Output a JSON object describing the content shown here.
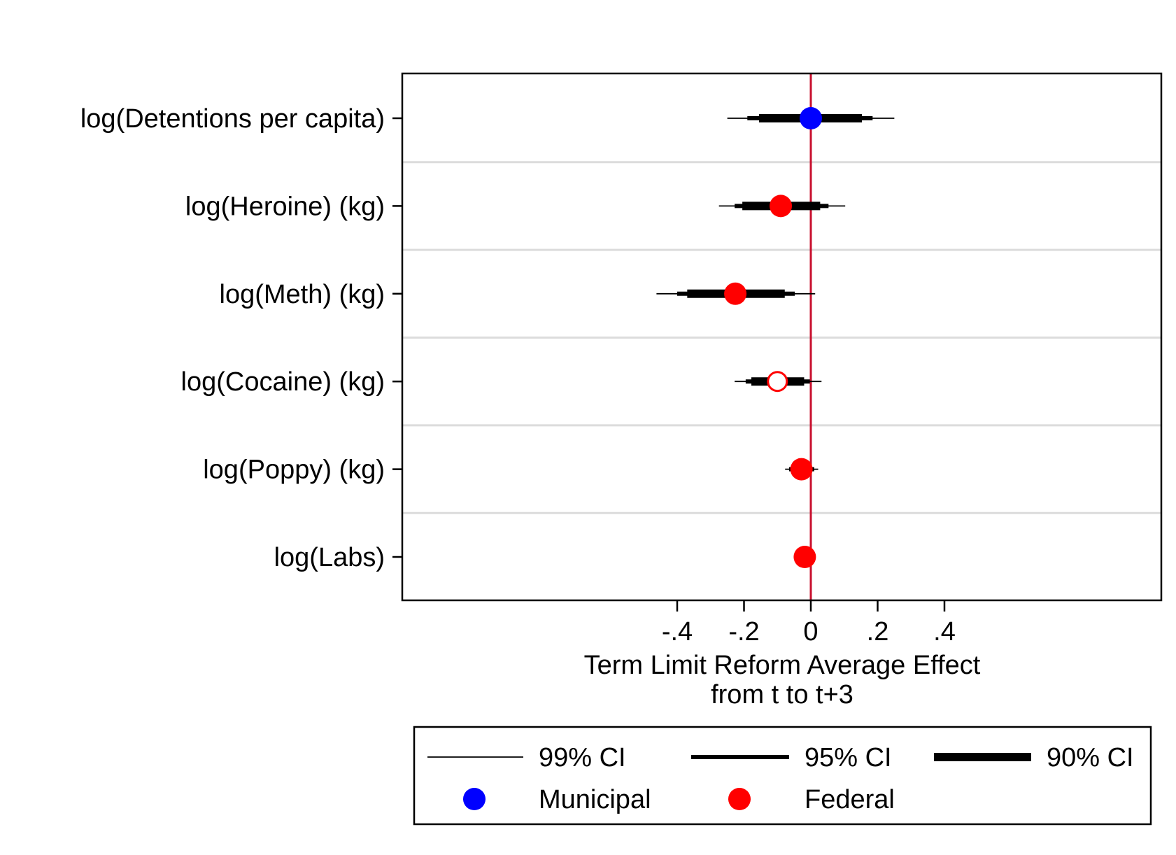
{
  "chart_data": {
    "type": "coefficient-plot",
    "title": "",
    "xlabel": [
      "Term Limit Reform Average Effect",
      "from t to t+3"
    ],
    "ylabel": "",
    "xlim": [
      -0.485,
      0.425
    ],
    "xticks": [
      -0.4,
      -0.2,
      0,
      0.2,
      0.4
    ],
    "xtick_labels": [
      "-.4",
      "-.2",
      "0",
      ".2",
      ".4"
    ],
    "reference_line": {
      "x": 0,
      "color": "#c8102e"
    },
    "grid": "horizontal separators between rows",
    "rows": [
      {
        "label": "log(Detentions per capita)",
        "estimate": 0.0,
        "ci99": [
          -0.25,
          0.25
        ],
        "ci95": [
          -0.19,
          0.185
        ],
        "ci90": [
          -0.155,
          0.153
        ],
        "group": "Municipal",
        "filled": true
      },
      {
        "label": "log(Heroine) (kg)",
        "estimate": -0.09,
        "ci99": [
          -0.275,
          0.103
        ],
        "ci95": [
          -0.228,
          0.053
        ],
        "ci90": [
          -0.205,
          0.028
        ],
        "group": "Federal",
        "filled": true
      },
      {
        "label": "log(Meth) (kg)",
        "estimate": -0.226,
        "ci99": [
          -0.462,
          0.013
        ],
        "ci95": [
          -0.4,
          -0.048
        ],
        "ci90": [
          -0.37,
          -0.078
        ],
        "group": "Federal",
        "filled": true
      },
      {
        "label": "log(Cocaine) (kg)",
        "estimate": -0.1,
        "ci99": [
          -0.228,
          0.032
        ],
        "ci95": [
          -0.195,
          -0.003
        ],
        "ci90": [
          -0.178,
          -0.02
        ],
        "group": "Federal",
        "filled": false
      },
      {
        "label": "log(Poppy) (kg)",
        "estimate": -0.028,
        "ci99": [
          -0.077,
          0.022
        ],
        "ci95": [
          -0.065,
          0.01
        ],
        "ci90": [
          -0.058,
          0.003
        ],
        "group": "Federal",
        "filled": true
      },
      {
        "label": "log(Labs)",
        "estimate": -0.018,
        "ci99": [
          -0.037,
          0.003
        ],
        "ci95": [
          -0.033,
          -0.002
        ],
        "ci90": [
          -0.03,
          -0.006
        ],
        "group": "Federal",
        "filled": true
      }
    ],
    "colors": {
      "Municipal": "#0000ff",
      "Federal": "#ff0000",
      "ci": "#000000",
      "separator": "#dcdcdc"
    },
    "legend": {
      "placement": "bottom",
      "items": [
        {
          "label": "99% CI",
          "kind": "ci99"
        },
        {
          "label": "95% CI",
          "kind": "ci95"
        },
        {
          "label": "90% CI",
          "kind": "ci90"
        },
        {
          "label": "Municipal",
          "kind": "Municipal"
        },
        {
          "label": "Federal",
          "kind": "Federal"
        }
      ]
    }
  }
}
